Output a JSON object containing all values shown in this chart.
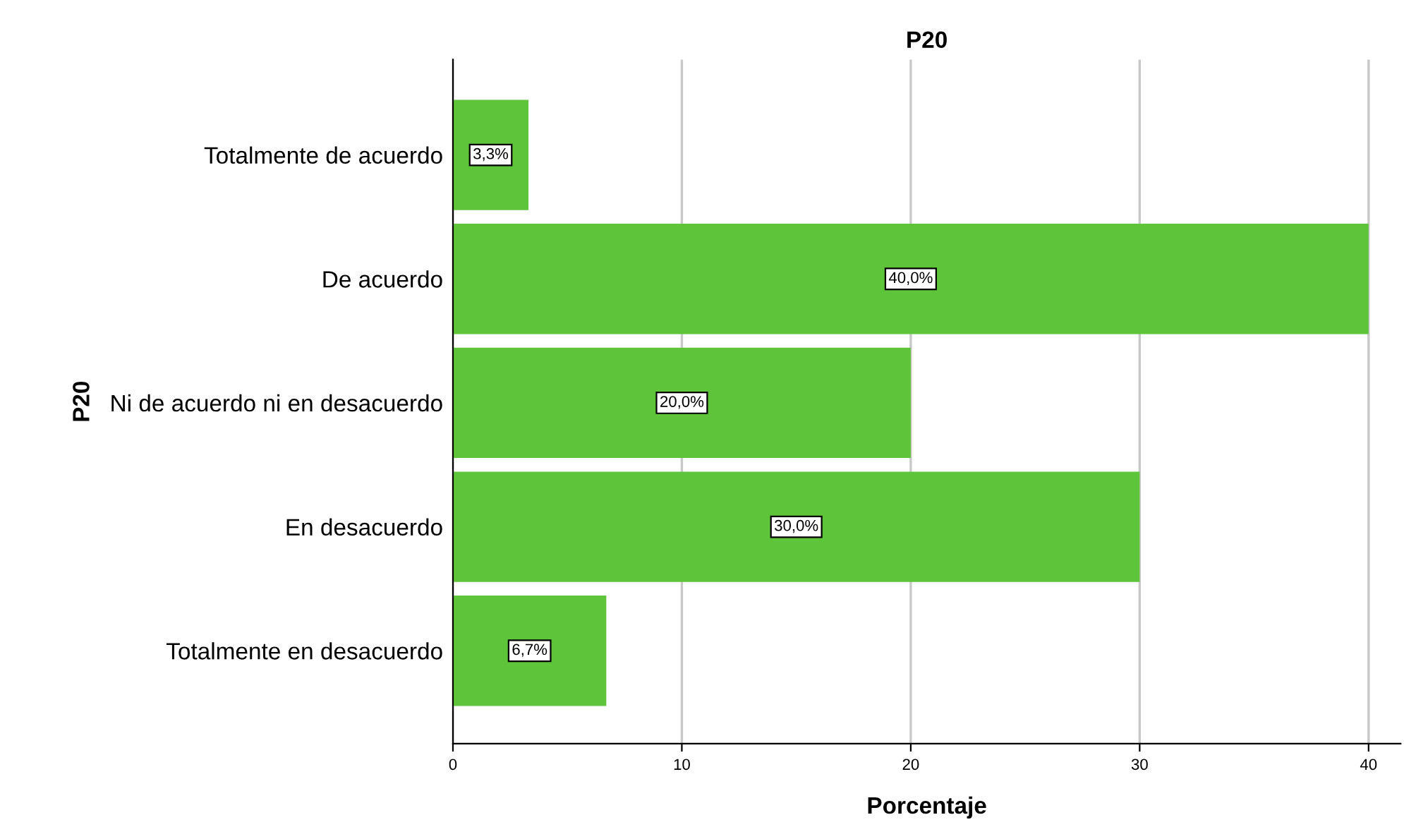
{
  "chart_data": {
    "type": "bar",
    "orientation": "horizontal",
    "title": "P20",
    "xlabel": "Porcentaje",
    "ylabel": "P20",
    "categories": [
      "Totalmente de acuerdo",
      "De acuerdo",
      "Ni de acuerdo ni en desacuerdo",
      "En desacuerdo",
      "Totalmente en desacuerdo"
    ],
    "values": [
      3.3,
      40.0,
      20.0,
      30.0,
      6.7
    ],
    "value_labels": [
      "3,3%",
      "40,0%",
      "20,0%",
      "30,0%",
      "6,7%"
    ],
    "color": "#5ec43a",
    "xlim": [
      0,
      41.4
    ],
    "xticks": [
      0,
      10,
      20,
      30,
      40
    ],
    "grid": "x"
  }
}
